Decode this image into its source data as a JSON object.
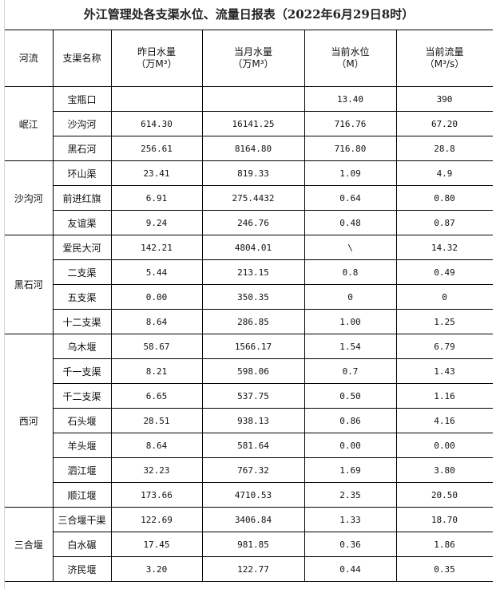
{
  "title": "外江管理处各支渠水位、流量日报表（2022年6月29日8时）",
  "headers": {
    "river": "河流",
    "canal": "支渠名称",
    "yesterday": "昨日水量",
    "yesterday_unit": "（万M³）",
    "month": "当月水量",
    "month_unit": "（万M³）",
    "level": "当前水位",
    "level_unit": "（M）",
    "flow": "当前流量",
    "flow_unit": "（M³/s）"
  },
  "groups": [
    {
      "river": "岷江",
      "rows": [
        {
          "canal": "宝瓶口",
          "yesterday": "",
          "month": "",
          "level": "13.40",
          "flow": "390"
        },
        {
          "canal": "沙沟河",
          "yesterday": "614.30",
          "month": "16141.25",
          "level": "716.76",
          "flow": "67.20"
        },
        {
          "canal": "黑石河",
          "yesterday": "256.61",
          "month": "8164.80",
          "level": "716.80",
          "flow": "28.8"
        }
      ]
    },
    {
      "river": "沙沟河",
      "rows": [
        {
          "canal": "环山渠",
          "yesterday": "23.41",
          "month": "819.33",
          "level": "1.09",
          "flow": "4.9"
        },
        {
          "canal": "前进红旗",
          "yesterday": "6.91",
          "month": "275.4432",
          "level": "0.64",
          "flow": "0.80"
        },
        {
          "canal": "友谊渠",
          "yesterday": "9.24",
          "month": "246.76",
          "level": "0.48",
          "flow": "0.87"
        }
      ]
    },
    {
      "river": "黑石河",
      "rows": [
        {
          "canal": "爱民大河",
          "yesterday": "142.21",
          "month": "4804.01",
          "level": "\\",
          "flow": "14.32"
        },
        {
          "canal": "二支渠",
          "yesterday": "5.44",
          "month": "213.15",
          "level": "0.8",
          "flow": "0.49"
        },
        {
          "canal": "五支渠",
          "yesterday": "0.00",
          "month": "350.35",
          "level": "0",
          "flow": "0"
        },
        {
          "canal": "十二支渠",
          "yesterday": "8.64",
          "month": "286.85",
          "level": "1.00",
          "flow": "1.25"
        }
      ]
    },
    {
      "river": "西河",
      "rows": [
        {
          "canal": "乌木堰",
          "yesterday": "58.67",
          "month": "1566.17",
          "level": "1.54",
          "flow": "6.79"
        },
        {
          "canal": "千一支渠",
          "yesterday": "8.21",
          "month": "598.06",
          "level": "0.7",
          "flow": "1.43"
        },
        {
          "canal": "千二支渠",
          "yesterday": "6.65",
          "month": "537.75",
          "level": "0.50",
          "flow": "1.16"
        },
        {
          "canal": "石头堰",
          "yesterday": "28.51",
          "month": "938.13",
          "level": "0.86",
          "flow": "4.16"
        },
        {
          "canal": "羊头堰",
          "yesterday": "8.64",
          "month": "581.64",
          "level": "0.00",
          "flow": "0.00"
        },
        {
          "canal": "泗江堰",
          "yesterday": "32.23",
          "month": "767.32",
          "level": "1.69",
          "flow": "3.80"
        },
        {
          "canal": "顺江堰",
          "yesterday": "173.66",
          "month": "4710.53",
          "level": "2.35",
          "flow": "20.50"
        }
      ]
    },
    {
      "river": "三合堰",
      "rows": [
        {
          "canal": "三合堰干渠",
          "yesterday": "122.69",
          "month": "3406.84",
          "level": "1.33",
          "flow": "18.70"
        },
        {
          "canal": "白水碾",
          "yesterday": "17.45",
          "month": "981.85",
          "level": "0.36",
          "flow": "1.86"
        },
        {
          "canal": "济民堰",
          "yesterday": "3.20",
          "month": "122.77",
          "level": "0.44",
          "flow": "0.35"
        }
      ]
    }
  ]
}
